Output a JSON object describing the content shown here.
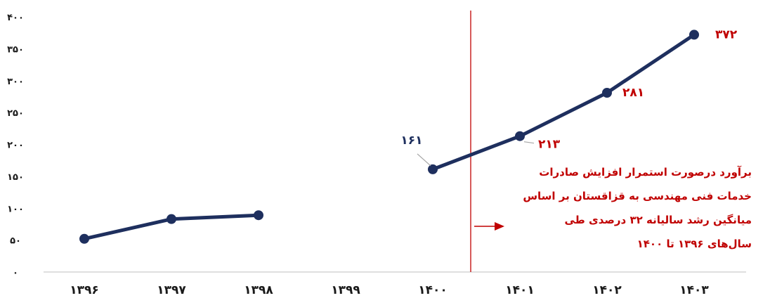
{
  "chart_data": {
    "type": "line",
    "categories": [
      "۱۳۹۶",
      "۱۳۹۷",
      "۱۳۹۸",
      "۱۳۹۹",
      "۱۴۰۰",
      "۱۴۰۱",
      "۱۴۰۲",
      "۱۴۰۳"
    ],
    "y_tick_labels": [
      "۰",
      "۵۰",
      "۱۰۰",
      "۱۵۰",
      "۲۰۰",
      "۲۵۰",
      "۳۰۰",
      "۳۵۰",
      "۴۰۰"
    ],
    "ylim": [
      0,
      400
    ],
    "grid": false,
    "series": [
      {
        "values": [
          52,
          83,
          89,
          null,
          161,
          213,
          281,
          372
        ]
      }
    ],
    "data_labels": [
      {
        "index": 4,
        "text": "۱۶۱",
        "color": "#1e2f5e"
      },
      {
        "index": 5,
        "text": "۲۱۳",
        "color": "#c00000"
      },
      {
        "index": 6,
        "text": "۲۸۱",
        "color": "#c00000"
      },
      {
        "index": 7,
        "text": "۳۷۲",
        "color": "#c00000"
      }
    ],
    "annotation": {
      "lines": [
        "برآورد درصورت استمرار افزایش صادرات",
        "خدمات فنی مهندسی به قزاقستان بر اساس",
        "میانگین رشد سالیانه  ۳۲ درصدی طی",
        "سال‌های ۱۳۹۶ تا ۱۴۰۰"
      ],
      "color": "#c00000"
    },
    "colors": {
      "line": "#1e2f5e",
      "divider": "#c00000",
      "axis": "#bfbfbf",
      "highlight": "#c00000"
    }
  }
}
